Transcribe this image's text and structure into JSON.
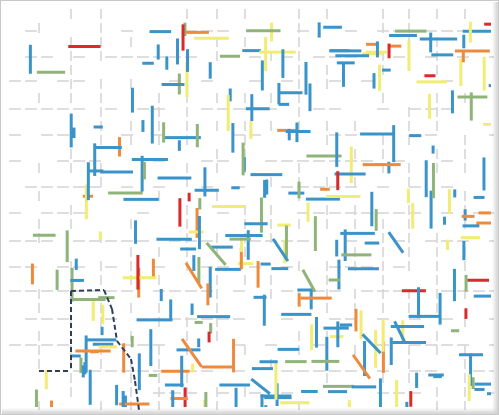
{
  "map": {
    "view": "street-segment-condition-map",
    "background": "#ffffff",
    "colors": {
      "frame_border": "#c8c8c8",
      "road_base": "#d6d6d6",
      "segment_blue": "#3a93c9",
      "segment_green": "#8fb47a",
      "segment_yellow": "#f1ec73",
      "segment_orange": "#ee8a3c",
      "segment_red": "#d92b2b",
      "boundary_dash": "#2f3e5a"
    },
    "legend": [],
    "labels": []
  }
}
